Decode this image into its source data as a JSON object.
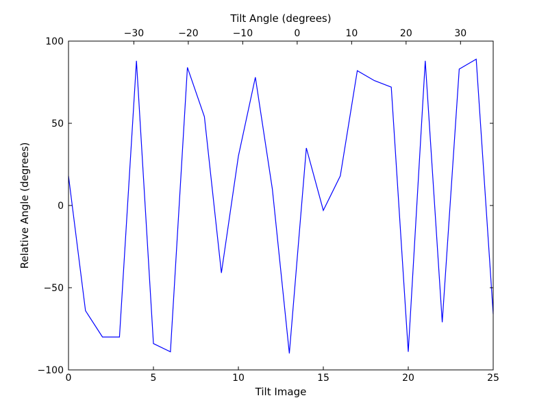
{
  "chart_data": {
    "type": "line",
    "xlabel": "Tilt Image",
    "ylabel": "Relative Angle (degrees)",
    "x2label": "Tilt Angle (degrees)",
    "xlim": [
      0,
      25
    ],
    "ylim": [
      -100,
      100
    ],
    "x2lim": [
      -42,
      36
    ],
    "x_ticks": [
      0,
      5,
      10,
      15,
      20,
      25
    ],
    "y_ticks": [
      -100,
      -50,
      0,
      50,
      100
    ],
    "x2_ticks": [
      -30,
      -20,
      -10,
      0,
      10,
      20,
      30
    ],
    "x_tick_labels": [
      "0",
      "5",
      "10",
      "15",
      "20",
      "25"
    ],
    "y_tick_labels": [
      "−100",
      "−50",
      "0",
      "50",
      "100"
    ],
    "x2_tick_labels": [
      "−30",
      "−20",
      "−10",
      "0",
      "10",
      "20",
      "30"
    ],
    "grid": false,
    "line_color": "#0000ff",
    "series": [
      {
        "x": [
          0,
          1,
          2,
          3,
          4,
          5,
          6,
          7,
          8,
          9,
          10,
          11,
          12,
          13,
          14,
          15,
          16,
          17,
          18,
          19,
          20,
          21,
          22,
          23,
          24,
          25
        ],
        "values": [
          18,
          -64,
          -80,
          -80,
          88,
          -84,
          -89,
          84,
          54,
          -41,
          30,
          78,
          10,
          -90,
          35,
          -3,
          18,
          82,
          76,
          72,
          -89,
          88,
          -71,
          83,
          89,
          -66
        ]
      }
    ]
  }
}
